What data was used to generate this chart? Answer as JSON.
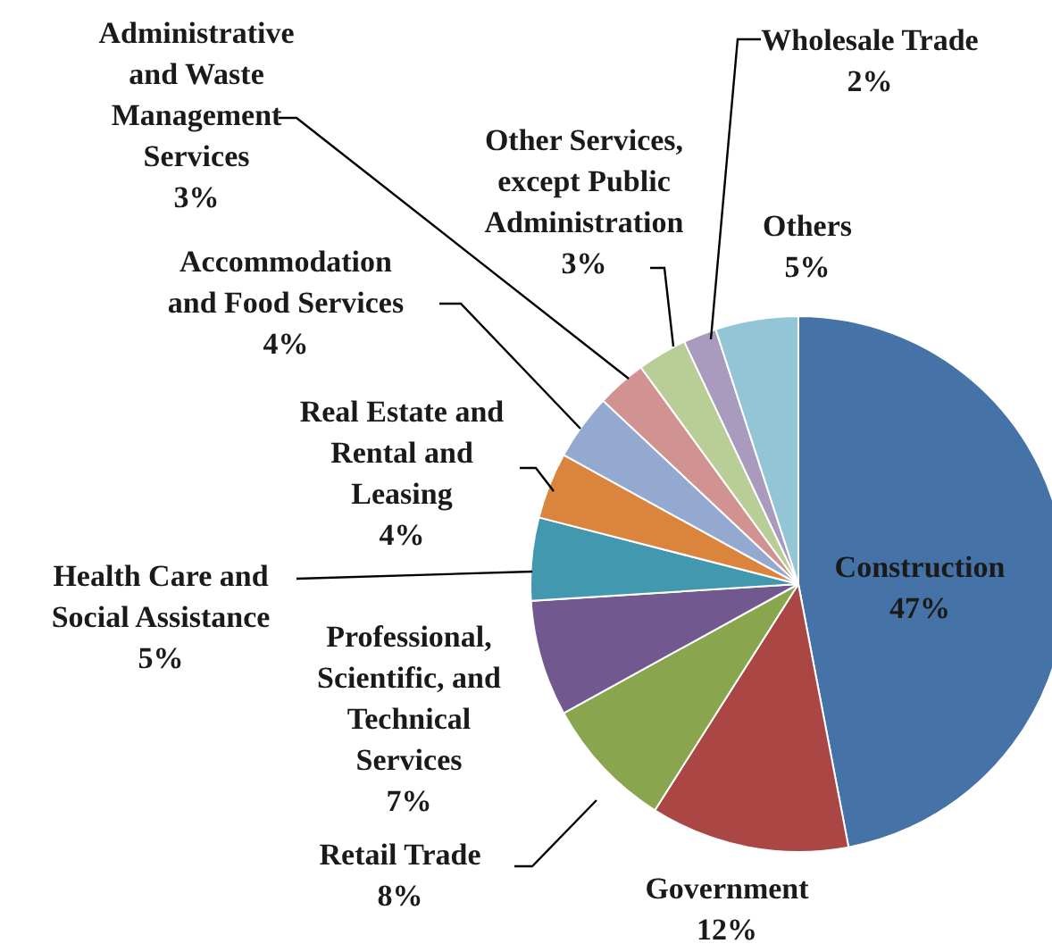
{
  "chart_data": {
    "type": "pie",
    "categories": [
      "Construction",
      "Government",
      "Retail Trade",
      "Professional, Scientific, and Technical Services",
      "Health Care and Social Assistance",
      "Real Estate and Rental and Leasing",
      "Accommodation and Food Services",
      "Administrative and Waste Management Services",
      "Other Services, except Public Administration",
      "Wholesale Trade",
      "Others"
    ],
    "values": [
      47,
      12,
      8,
      7,
      5,
      4,
      4,
      3,
      3,
      2,
      5
    ],
    "value_labels": [
      "47%",
      "12%",
      "8%",
      "7%",
      "5%",
      "4%",
      "4%",
      "3%",
      "3%",
      "2%",
      "5%"
    ],
    "colors": [
      "#4572a7",
      "#aa4643",
      "#89a54e",
      "#71588f",
      "#4198af",
      "#db843d",
      "#93a9cf",
      "#d19392",
      "#b9cd96",
      "#a99bbd",
      "#92c5d6"
    ]
  }
}
